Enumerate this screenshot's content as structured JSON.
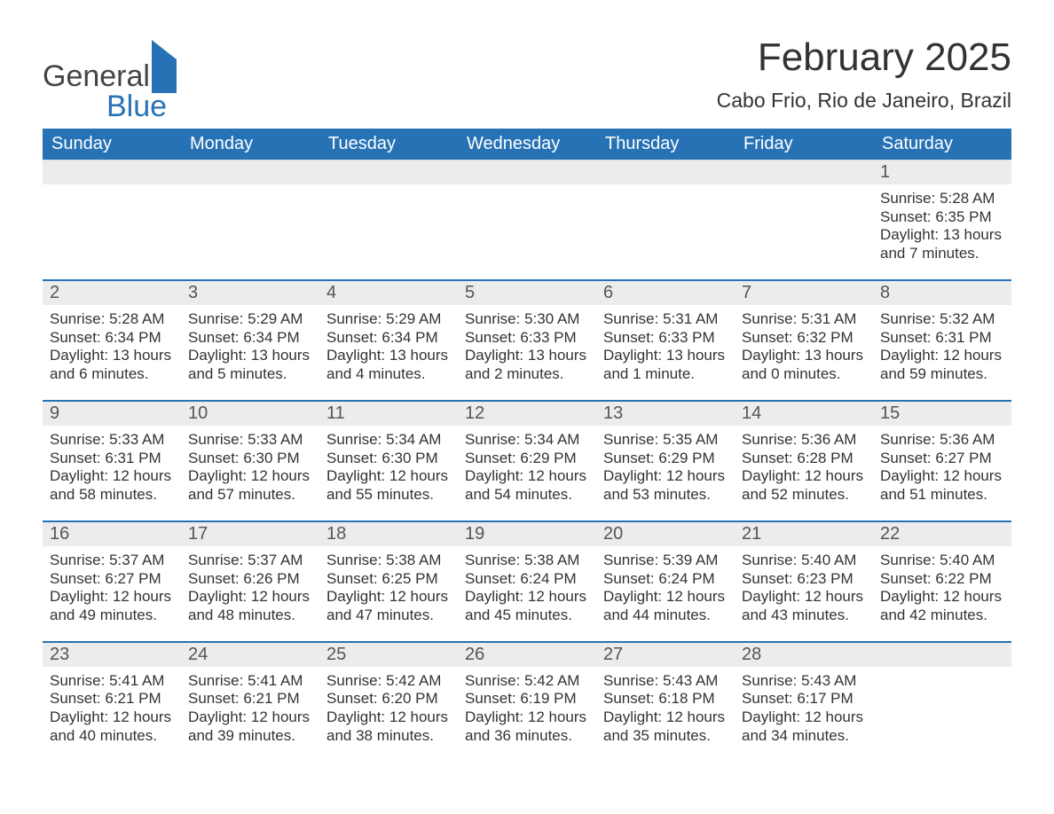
{
  "logo": {
    "line1": "General",
    "line2": "Blue"
  },
  "title": "February 2025",
  "location": "Cabo Frio, Rio de Janeiro, Brazil",
  "colors": {
    "brand": "#2772b5",
    "header_bg": "#2772b5",
    "daynum_bg": "#ececec",
    "text": "#333333"
  },
  "weekdays": [
    "Sunday",
    "Monday",
    "Tuesday",
    "Wednesday",
    "Thursday",
    "Friday",
    "Saturday"
  ],
  "weeks": [
    [
      {
        "n": "",
        "sr": "",
        "ss": "",
        "dl": ""
      },
      {
        "n": "",
        "sr": "",
        "ss": "",
        "dl": ""
      },
      {
        "n": "",
        "sr": "",
        "ss": "",
        "dl": ""
      },
      {
        "n": "",
        "sr": "",
        "ss": "",
        "dl": ""
      },
      {
        "n": "",
        "sr": "",
        "ss": "",
        "dl": ""
      },
      {
        "n": "",
        "sr": "",
        "ss": "",
        "dl": ""
      },
      {
        "n": "1",
        "sr": "Sunrise: 5:28 AM",
        "ss": "Sunset: 6:35 PM",
        "dl": "Daylight: 13 hours and 7 minutes."
      }
    ],
    [
      {
        "n": "2",
        "sr": "Sunrise: 5:28 AM",
        "ss": "Sunset: 6:34 PM",
        "dl": "Daylight: 13 hours and 6 minutes."
      },
      {
        "n": "3",
        "sr": "Sunrise: 5:29 AM",
        "ss": "Sunset: 6:34 PM",
        "dl": "Daylight: 13 hours and 5 minutes."
      },
      {
        "n": "4",
        "sr": "Sunrise: 5:29 AM",
        "ss": "Sunset: 6:34 PM",
        "dl": "Daylight: 13 hours and 4 minutes."
      },
      {
        "n": "5",
        "sr": "Sunrise: 5:30 AM",
        "ss": "Sunset: 6:33 PM",
        "dl": "Daylight: 13 hours and 2 minutes."
      },
      {
        "n": "6",
        "sr": "Sunrise: 5:31 AM",
        "ss": "Sunset: 6:33 PM",
        "dl": "Daylight: 13 hours and 1 minute."
      },
      {
        "n": "7",
        "sr": "Sunrise: 5:31 AM",
        "ss": "Sunset: 6:32 PM",
        "dl": "Daylight: 13 hours and 0 minutes."
      },
      {
        "n": "8",
        "sr": "Sunrise: 5:32 AM",
        "ss": "Sunset: 6:31 PM",
        "dl": "Daylight: 12 hours and 59 minutes."
      }
    ],
    [
      {
        "n": "9",
        "sr": "Sunrise: 5:33 AM",
        "ss": "Sunset: 6:31 PM",
        "dl": "Daylight: 12 hours and 58 minutes."
      },
      {
        "n": "10",
        "sr": "Sunrise: 5:33 AM",
        "ss": "Sunset: 6:30 PM",
        "dl": "Daylight: 12 hours and 57 minutes."
      },
      {
        "n": "11",
        "sr": "Sunrise: 5:34 AM",
        "ss": "Sunset: 6:30 PM",
        "dl": "Daylight: 12 hours and 55 minutes."
      },
      {
        "n": "12",
        "sr": "Sunrise: 5:34 AM",
        "ss": "Sunset: 6:29 PM",
        "dl": "Daylight: 12 hours and 54 minutes."
      },
      {
        "n": "13",
        "sr": "Sunrise: 5:35 AM",
        "ss": "Sunset: 6:29 PM",
        "dl": "Daylight: 12 hours and 53 minutes."
      },
      {
        "n": "14",
        "sr": "Sunrise: 5:36 AM",
        "ss": "Sunset: 6:28 PM",
        "dl": "Daylight: 12 hours and 52 minutes."
      },
      {
        "n": "15",
        "sr": "Sunrise: 5:36 AM",
        "ss": "Sunset: 6:27 PM",
        "dl": "Daylight: 12 hours and 51 minutes."
      }
    ],
    [
      {
        "n": "16",
        "sr": "Sunrise: 5:37 AM",
        "ss": "Sunset: 6:27 PM",
        "dl": "Daylight: 12 hours and 49 minutes."
      },
      {
        "n": "17",
        "sr": "Sunrise: 5:37 AM",
        "ss": "Sunset: 6:26 PM",
        "dl": "Daylight: 12 hours and 48 minutes."
      },
      {
        "n": "18",
        "sr": "Sunrise: 5:38 AM",
        "ss": "Sunset: 6:25 PM",
        "dl": "Daylight: 12 hours and 47 minutes."
      },
      {
        "n": "19",
        "sr": "Sunrise: 5:38 AM",
        "ss": "Sunset: 6:24 PM",
        "dl": "Daylight: 12 hours and 45 minutes."
      },
      {
        "n": "20",
        "sr": "Sunrise: 5:39 AM",
        "ss": "Sunset: 6:24 PM",
        "dl": "Daylight: 12 hours and 44 minutes."
      },
      {
        "n": "21",
        "sr": "Sunrise: 5:40 AM",
        "ss": "Sunset: 6:23 PM",
        "dl": "Daylight: 12 hours and 43 minutes."
      },
      {
        "n": "22",
        "sr": "Sunrise: 5:40 AM",
        "ss": "Sunset: 6:22 PM",
        "dl": "Daylight: 12 hours and 42 minutes."
      }
    ],
    [
      {
        "n": "23",
        "sr": "Sunrise: 5:41 AM",
        "ss": "Sunset: 6:21 PM",
        "dl": "Daylight: 12 hours and 40 minutes."
      },
      {
        "n": "24",
        "sr": "Sunrise: 5:41 AM",
        "ss": "Sunset: 6:21 PM",
        "dl": "Daylight: 12 hours and 39 minutes."
      },
      {
        "n": "25",
        "sr": "Sunrise: 5:42 AM",
        "ss": "Sunset: 6:20 PM",
        "dl": "Daylight: 12 hours and 38 minutes."
      },
      {
        "n": "26",
        "sr": "Sunrise: 5:42 AM",
        "ss": "Sunset: 6:19 PM",
        "dl": "Daylight: 12 hours and 36 minutes."
      },
      {
        "n": "27",
        "sr": "Sunrise: 5:43 AM",
        "ss": "Sunset: 6:18 PM",
        "dl": "Daylight: 12 hours and 35 minutes."
      },
      {
        "n": "28",
        "sr": "Sunrise: 5:43 AM",
        "ss": "Sunset: 6:17 PM",
        "dl": "Daylight: 12 hours and 34 minutes."
      },
      {
        "n": "",
        "sr": "",
        "ss": "",
        "dl": ""
      }
    ]
  ]
}
